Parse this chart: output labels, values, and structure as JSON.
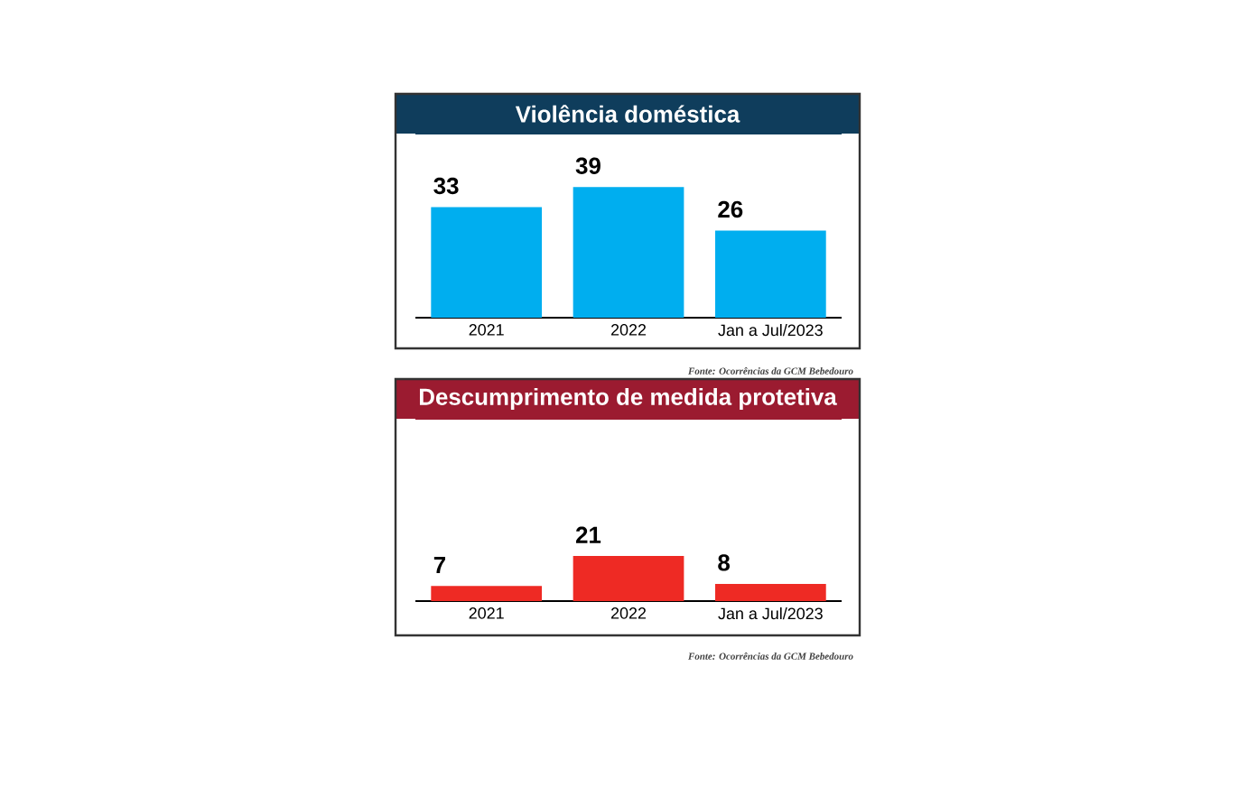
{
  "chart_data": [
    {
      "type": "bar",
      "title": "Violência doméstica",
      "categories": [
        "2021",
        "2022",
        "Jan a Jul/2023"
      ],
      "values": [
        33,
        39,
        26
      ],
      "color": "#00aeef",
      "ylim": [
        0,
        55
      ],
      "data_labels": true,
      "tick_labels": "x",
      "annotations": [
        "Fonte: Ocorrências da GCM Bebedouro"
      ]
    },
    {
      "type": "bar",
      "title": "Descumprimento de medida protetiva",
      "categories": [
        "2021",
        "2022",
        "Jan a Jul/2023"
      ],
      "values": [
        7,
        21,
        8
      ],
      "color": "#ee2a24",
      "ylim": [
        0,
        85
      ],
      "data_labels": true,
      "tick_labels": "x",
      "annotations": [
        "Fonte: Ocorrências da GCM Bebedouro"
      ]
    }
  ]
}
